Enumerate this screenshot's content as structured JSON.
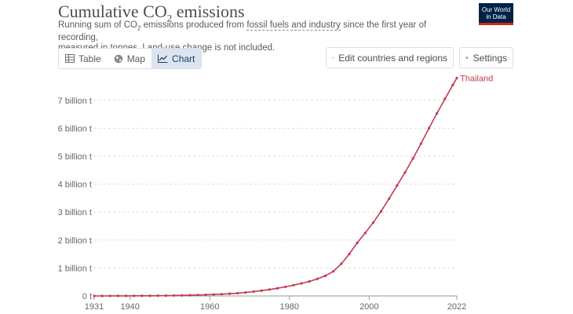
{
  "header": {
    "title_main": "Cumulative CO",
    "title_sub": "2",
    "title_end": " emissions",
    "subtitle_a": "Running sum of CO",
    "subtitle_sub": "2",
    "subtitle_b": " emissions produced from ",
    "subtitle_link": "fossil fuels and industry",
    "subtitle_c": " since the first year of recording,",
    "subtitle_line2": "measured in tonnes. Land-use change is not included."
  },
  "logo": {
    "line1": "Our World",
    "line2": "in Data"
  },
  "toolbar": {
    "tabs": [
      {
        "label": "Table",
        "icon": "table-icon",
        "active": false
      },
      {
        "label": "Map",
        "icon": "globe-icon",
        "active": false
      },
      {
        "label": "Chart",
        "icon": "line-chart-icon",
        "active": true
      }
    ],
    "edit_label": "Edit countries and regions",
    "settings_label": "Settings"
  },
  "colors": {
    "series": "#c33a52",
    "accent": "#dbe5f0",
    "logo_bg": "#002147",
    "logo_bar": "#ce261e"
  },
  "chart_data": {
    "type": "line",
    "title": "Cumulative CO2 emissions",
    "ylabel": "",
    "xlabel": "",
    "ylim": [
      0,
      7800000000
    ],
    "xlim": [
      1931,
      2022
    ],
    "x_ticks": [
      1931,
      1940,
      1960,
      1980,
      2000,
      2022
    ],
    "y_ticks": [
      {
        "value": 0,
        "label": "0 t"
      },
      {
        "value": 1000000000,
        "label": "1 billion t"
      },
      {
        "value": 2000000000,
        "label": "2 billion t"
      },
      {
        "value": 3000000000,
        "label": "3 billion t"
      },
      {
        "value": 4000000000,
        "label": "4 billion t"
      },
      {
        "value": 5000000000,
        "label": "5 billion t"
      },
      {
        "value": 6000000000,
        "label": "6 billion t"
      },
      {
        "value": 7000000000,
        "label": "7 billion t"
      }
    ],
    "series": [
      {
        "name": "Thailand",
        "x": [
          1931,
          1933,
          1935,
          1937,
          1939,
          1941,
          1943,
          1945,
          1947,
          1949,
          1951,
          1953,
          1955,
          1957,
          1959,
          1961,
          1963,
          1965,
          1967,
          1969,
          1971,
          1973,
          1975,
          1977,
          1979,
          1981,
          1983,
          1985,
          1987,
          1989,
          1991,
          1993,
          1995,
          1997,
          1999,
          2001,
          2003,
          2005,
          2007,
          2009,
          2011,
          2013,
          2015,
          2017,
          2019,
          2021,
          2022
        ],
        "values": [
          0,
          1000000,
          2000000,
          3000000,
          4000000,
          5000000,
          6000000,
          7000000,
          9000000,
          12000000,
          16000000,
          20000000,
          26000000,
          33000000,
          42000000,
          52000000,
          65000000,
          80000000,
          100000000,
          125000000,
          155000000,
          190000000,
          230000000,
          275000000,
          325000000,
          385000000,
          450000000,
          520000000,
          610000000,
          720000000,
          880000000,
          1150000000,
          1500000000,
          1900000000,
          2250000000,
          2620000000,
          3030000000,
          3480000000,
          3950000000,
          4420000000,
          4920000000,
          5450000000,
          6000000000,
          6530000000,
          7050000000,
          7550000000,
          7800000000
        ]
      }
    ]
  }
}
